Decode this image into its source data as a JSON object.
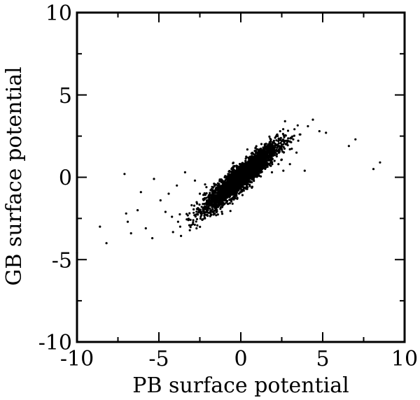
{
  "chart_data": {
    "type": "scatter",
    "title": "",
    "xlabel": "PB surface potential",
    "ylabel": "GB surface potential",
    "xlim": [
      -10,
      10
    ],
    "ylim": [
      -10,
      10
    ],
    "xticks": [
      -10,
      -5,
      0,
      5,
      10
    ],
    "yticks": [
      -10,
      -5,
      0,
      5,
      10
    ],
    "xtick_labels": [
      "-10",
      "-5",
      "0",
      "5",
      "10"
    ],
    "ytick_labels": [
      "-10",
      "-5",
      "0",
      "5",
      "10"
    ],
    "grid": false,
    "legend": "none",
    "marker_color": "#000000",
    "series": [
      {
        "points": [
          [
            -10.0,
            -4.6
          ],
          [
            -8.6,
            -3.0
          ],
          [
            -8.2,
            -4.0
          ],
          [
            -7.1,
            0.2
          ],
          [
            -7.0,
            -2.2
          ],
          [
            -6.9,
            -2.7
          ],
          [
            -6.7,
            -3.4
          ],
          [
            -6.3,
            -2.0
          ],
          [
            -6.1,
            -0.9
          ],
          [
            -5.8,
            -3.1
          ],
          [
            -5.4,
            -3.7
          ],
          [
            -5.3,
            -0.1
          ],
          [
            -4.9,
            -1.4
          ],
          [
            -4.6,
            -2.1
          ],
          [
            -4.4,
            -1.0
          ],
          [
            -4.2,
            -2.4
          ],
          [
            -3.9,
            -0.5
          ],
          [
            -3.7,
            -3.0
          ],
          [
            -3.4,
            0.3
          ],
          [
            -3.2,
            -2.6
          ],
          [
            -3.0,
            -1.7
          ],
          [
            -2.8,
            -0.2
          ],
          [
            -2.7,
            -3.1
          ],
          [
            -2.5,
            -1.0
          ],
          [
            -2.4,
            -2.1
          ],
          [
            -2.2,
            -1.3
          ],
          [
            -2.1,
            -0.6
          ],
          [
            -2.0,
            -1.9
          ],
          [
            -1.9,
            -1.1
          ],
          [
            -1.8,
            -1.6
          ],
          [
            -1.7,
            -0.8
          ],
          [
            -1.6,
            -2.2
          ],
          [
            -1.5,
            -1.3
          ],
          [
            -1.4,
            -0.5
          ],
          [
            -1.3,
            -1.7
          ],
          [
            -1.2,
            -1.0
          ],
          [
            -1.1,
            -0.4
          ],
          [
            -1.0,
            -1.4
          ],
          [
            -0.9,
            -0.8
          ],
          [
            -0.8,
            -0.1
          ],
          [
            -0.7,
            -1.2
          ],
          [
            -0.6,
            -0.5
          ],
          [
            -0.5,
            -0.9
          ],
          [
            -0.4,
            0.0
          ],
          [
            -0.3,
            -0.6
          ],
          [
            -0.2,
            0.3
          ],
          [
            -0.1,
            -0.3
          ],
          [
            0.0,
            0.1
          ],
          [
            0.1,
            -0.4
          ],
          [
            0.2,
            0.5
          ],
          [
            0.3,
            0.0
          ],
          [
            0.4,
            0.7
          ],
          [
            0.5,
            0.2
          ],
          [
            0.6,
            0.9
          ],
          [
            0.7,
            0.4
          ],
          [
            0.8,
            1.1
          ],
          [
            0.9,
            0.5
          ],
          [
            1.0,
            1.3
          ],
          [
            1.1,
            0.7
          ],
          [
            1.2,
            1.5
          ],
          [
            1.3,
            0.9
          ],
          [
            1.4,
            1.7
          ],
          [
            1.5,
            1.0
          ],
          [
            1.6,
            1.9
          ],
          [
            1.7,
            1.2
          ],
          [
            1.8,
            2.1
          ],
          [
            1.9,
            0.3
          ],
          [
            2.0,
            1.6
          ],
          [
            2.1,
            2.4
          ],
          [
            2.2,
            1.4
          ],
          [
            2.3,
            0.8
          ],
          [
            2.4,
            2.8
          ],
          [
            2.5,
            1.7
          ],
          [
            2.6,
            0.4
          ],
          [
            2.7,
            3.4
          ],
          [
            2.8,
            2.0
          ],
          [
            3.0,
            0.8
          ],
          [
            3.2,
            2.3
          ],
          [
            3.4,
            1.5
          ],
          [
            3.6,
            2.6
          ],
          [
            3.9,
            0.4
          ],
          [
            4.1,
            3.1
          ],
          [
            4.4,
            3.5
          ],
          [
            4.8,
            2.8
          ],
          [
            5.2,
            2.7
          ],
          [
            6.6,
            1.9
          ],
          [
            7.0,
            2.3
          ],
          [
            8.1,
            0.5
          ],
          [
            8.5,
            0.9
          ]
        ]
      }
    ]
  }
}
